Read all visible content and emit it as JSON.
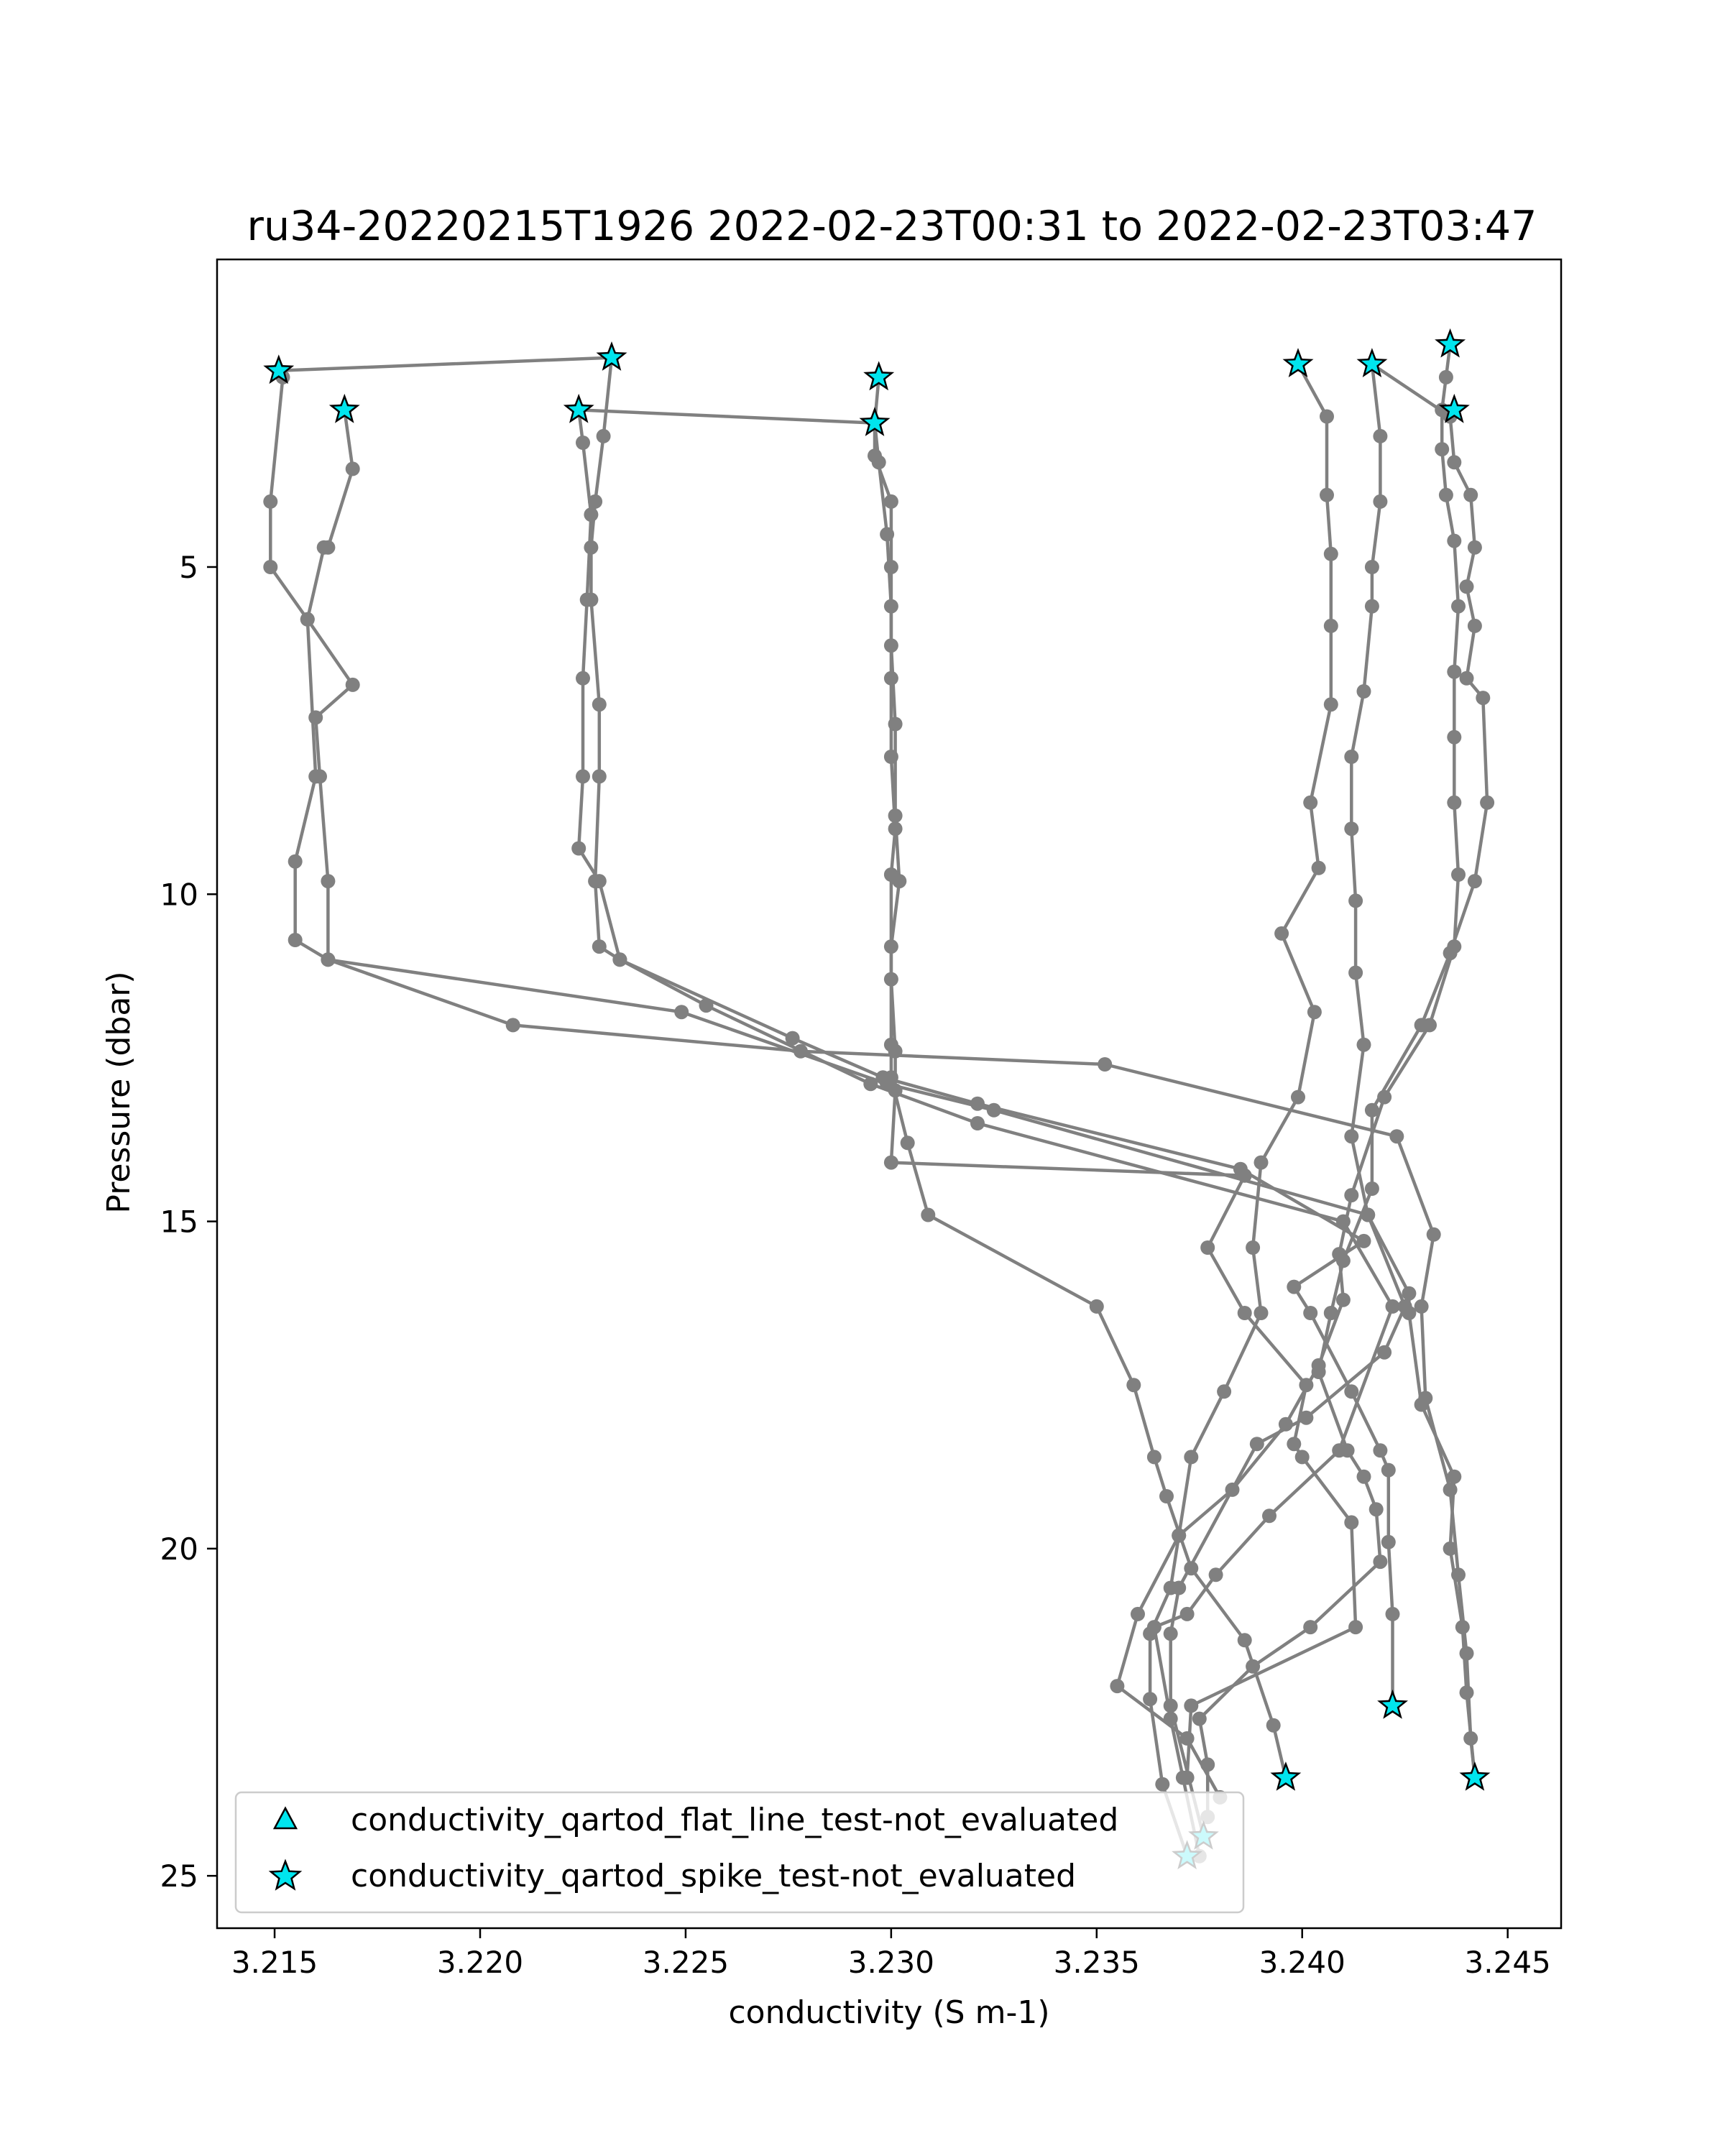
{
  "chart_data": {
    "type": "line",
    "title": "ru34-20220215T1926 2022-02-23T00:31 to 2022-02-23T03:47",
    "xlabel": "conductivity (S m-1)",
    "ylabel": "Pressure (dbar)",
    "xlim": [
      3.2136,
      3.2463
    ],
    "ylim": [
      25.8,
      0.3
    ],
    "y_inverted": true,
    "grid": false,
    "x_ticks": [
      3.215,
      3.22,
      3.225,
      3.23,
      3.235,
      3.24,
      3.245
    ],
    "x_tick_labels": [
      "3.215",
      "3.220",
      "3.225",
      "3.230",
      "3.235",
      "3.240",
      "3.245"
    ],
    "y_ticks": [
      5,
      10,
      15,
      20,
      25
    ],
    "y_tick_labels": [
      "5",
      "10",
      "15",
      "20",
      "25"
    ],
    "line_color": "#808080",
    "marker_color": "#00e5ee",
    "legend_position": "lower-left",
    "legend": [
      {
        "label": "conductivity_qartod_flat_line_test-not_evaluated",
        "marker": "triangle"
      },
      {
        "label": "conductivity_qartod_spike_test-not_evaluated",
        "marker": "star"
      }
    ],
    "series": [
      {
        "points": [
          [
            3.2167,
            2.6
          ],
          [
            3.2169,
            3.5
          ],
          [
            3.2163,
            4.7
          ],
          [
            3.2162,
            4.7
          ],
          [
            3.2158,
            5.8
          ],
          [
            3.2169,
            6.8
          ],
          [
            3.216,
            7.3
          ],
          [
            3.2161,
            8.2
          ],
          [
            3.2163,
            9.8
          ],
          [
            3.2163,
            11.0
          ],
          [
            3.2208,
            12.0
          ],
          [
            3.2278,
            12.4
          ],
          [
            3.2352,
            12.6
          ],
          [
            3.2423,
            13.7
          ],
          [
            3.2432,
            15.2
          ],
          [
            3.2429,
            16.3
          ],
          [
            3.243,
            17.7
          ],
          [
            3.2436,
            19.1
          ],
          [
            3.2438,
            20.4
          ],
          [
            3.244,
            21.6
          ],
          [
            3.2441,
            22.9
          ],
          [
            3.2442,
            23.5
          ]
        ]
      },
      {
        "points": [
          [
            3.2151,
            2.0
          ],
          [
            3.2152,
            2.1
          ],
          [
            3.2149,
            4.0
          ],
          [
            3.2149,
            5.0
          ],
          [
            3.2158,
            5.8
          ],
          [
            3.216,
            8.2
          ],
          [
            3.2155,
            9.5
          ],
          [
            3.2155,
            10.7
          ],
          [
            3.2163,
            11.0
          ],
          [
            3.2249,
            11.8
          ],
          [
            3.2299,
            12.9
          ],
          [
            3.2325,
            13.3
          ],
          [
            3.2416,
            14.9
          ],
          [
            3.2425,
            16.3
          ],
          [
            3.242,
            17.0
          ],
          [
            3.2401,
            18.0
          ],
          [
            3.2389,
            18.4
          ],
          [
            3.237,
            20.6
          ],
          [
            3.2368,
            21.3
          ],
          [
            3.2368,
            22.4
          ],
          [
            3.2376,
            24.4
          ]
        ]
      },
      {
        "points": [
          [
            3.2151,
            2.0
          ],
          [
            3.2232,
            1.8
          ],
          [
            3.223,
            3.0
          ],
          [
            3.2228,
            4.0
          ],
          [
            3.2227,
            4.7
          ],
          [
            3.2227,
            5.5
          ],
          [
            3.2229,
            7.1
          ],
          [
            3.2229,
            8.2
          ],
          [
            3.2228,
            9.8
          ],
          [
            3.2229,
            10.8
          ],
          [
            3.2234,
            11.0
          ],
          [
            3.2255,
            11.7
          ],
          [
            3.2295,
            12.9
          ],
          [
            3.2321,
            13.5
          ],
          [
            3.241,
            15.0
          ],
          [
            3.2422,
            16.3
          ],
          [
            3.2409,
            18.5
          ],
          [
            3.2392,
            19.5
          ],
          [
            3.2379,
            20.4
          ],
          [
            3.2372,
            21.0
          ],
          [
            3.2364,
            21.2
          ],
          [
            3.2368,
            22.6
          ],
          [
            3.2371,
            23.5
          ],
          [
            3.2375,
            24.7
          ]
        ]
      },
      {
        "points": [
          [
            3.2224,
            2.6
          ],
          [
            3.2225,
            3.1
          ],
          [
            3.2227,
            4.2
          ],
          [
            3.2226,
            5.5
          ],
          [
            3.2225,
            6.7
          ],
          [
            3.2225,
            8.2
          ],
          [
            3.2224,
            9.3
          ],
          [
            3.2229,
            9.8
          ],
          [
            3.2234,
            11.0
          ],
          [
            3.2276,
            12.2
          ],
          [
            3.2298,
            12.8
          ],
          [
            3.2321,
            13.2
          ],
          [
            3.2385,
            14.2
          ],
          [
            3.2415,
            15.3
          ],
          [
            3.2398,
            16.0
          ],
          [
            3.2402,
            16.4
          ],
          [
            3.2412,
            17.6
          ],
          [
            3.2419,
            18.5
          ],
          [
            3.2421,
            18.8
          ],
          [
            3.2421,
            19.9
          ],
          [
            3.2422,
            21.0
          ],
          [
            3.2422,
            22.4
          ]
        ]
      },
      {
        "points": [
          [
            3.2224,
            2.6
          ],
          [
            3.2296,
            2.8
          ],
          [
            3.2297,
            3.4
          ],
          [
            3.2299,
            4.5
          ],
          [
            3.23,
            5.6
          ],
          [
            3.23,
            6.7
          ],
          [
            3.23,
            7.9
          ],
          [
            3.2301,
            9.0
          ],
          [
            3.23,
            9.7
          ],
          [
            3.23,
            11.3
          ],
          [
            3.2301,
            12.4
          ],
          [
            3.2301,
            13.0
          ],
          [
            3.23,
            14.1
          ],
          [
            3.2386,
            14.3
          ],
          [
            3.2377,
            15.4
          ],
          [
            3.2386,
            16.4
          ],
          [
            3.2401,
            17.5
          ],
          [
            3.2398,
            18.4
          ],
          [
            3.24,
            18.6
          ],
          [
            3.2412,
            19.6
          ],
          [
            3.2413,
            21.2
          ],
          [
            3.2373,
            22.4
          ],
          [
            3.2372,
            23.5
          ]
        ]
      },
      {
        "points": [
          [
            3.2297,
            2.1
          ],
          [
            3.2296,
            2.8
          ],
          [
            3.2296,
            3.3
          ],
          [
            3.23,
            4.0
          ],
          [
            3.23,
            5.0
          ],
          [
            3.23,
            6.2
          ],
          [
            3.2301,
            7.4
          ],
          [
            3.2301,
            8.8
          ],
          [
            3.2302,
            9.8
          ],
          [
            3.23,
            10.8
          ],
          [
            3.23,
            12.3
          ],
          [
            3.23,
            12.8
          ],
          [
            3.2304,
            13.8
          ],
          [
            3.2309,
            14.9
          ],
          [
            3.235,
            16.3
          ],
          [
            3.2359,
            17.5
          ],
          [
            3.2364,
            18.6
          ],
          [
            3.2367,
            19.2
          ],
          [
            3.2373,
            20.3
          ],
          [
            3.2386,
            21.4
          ],
          [
            3.2393,
            22.7
          ],
          [
            3.2396,
            23.5
          ]
        ]
      },
      {
        "points": [
          [
            3.2399,
            1.9
          ],
          [
            3.2406,
            2.7
          ],
          [
            3.2406,
            3.9
          ],
          [
            3.2407,
            4.8
          ],
          [
            3.2407,
            5.9
          ],
          [
            3.2407,
            7.1
          ],
          [
            3.2402,
            8.6
          ],
          [
            3.2404,
            9.6
          ],
          [
            3.2395,
            10.6
          ],
          [
            3.2403,
            11.8
          ],
          [
            3.2399,
            13.1
          ],
          [
            3.239,
            14.1
          ],
          [
            3.2388,
            15.4
          ],
          [
            3.239,
            16.4
          ],
          [
            3.2381,
            17.6
          ],
          [
            3.2373,
            18.6
          ],
          [
            3.237,
            19.8
          ],
          [
            3.236,
            21.0
          ],
          [
            3.2355,
            22.1
          ],
          [
            3.2372,
            22.9
          ],
          [
            3.238,
            23.8
          ]
        ]
      },
      {
        "points": [
          [
            3.2417,
            1.9
          ],
          [
            3.2419,
            3.0
          ],
          [
            3.2419,
            4.0
          ],
          [
            3.2417,
            5.0
          ],
          [
            3.2417,
            5.6
          ],
          [
            3.2415,
            6.9
          ],
          [
            3.2412,
            7.9
          ],
          [
            3.2412,
            9.0
          ],
          [
            3.2413,
            10.1
          ],
          [
            3.2413,
            11.2
          ],
          [
            3.2415,
            12.3
          ],
          [
            3.2412,
            13.7
          ],
          [
            3.2416,
            14.9
          ],
          [
            3.2426,
            16.1
          ],
          [
            3.2426,
            16.4
          ],
          [
            3.2429,
            17.8
          ],
          [
            3.2437,
            18.9
          ],
          [
            3.2436,
            20.0
          ],
          [
            3.2439,
            21.2
          ],
          [
            3.244,
            22.2
          ],
          [
            3.2442,
            23.5
          ]
        ]
      },
      {
        "points": [
          [
            3.2417,
            1.9
          ],
          [
            3.2436,
            2.7
          ],
          [
            3.2437,
            3.4
          ],
          [
            3.2441,
            3.9
          ],
          [
            3.2442,
            4.7
          ],
          [
            3.244,
            5.3
          ],
          [
            3.2442,
            5.9
          ],
          [
            3.244,
            6.7
          ],
          [
            3.2444,
            7.0
          ],
          [
            3.2445,
            8.6
          ],
          [
            3.2442,
            9.8
          ],
          [
            3.2436,
            10.9
          ],
          [
            3.2429,
            12.0
          ],
          [
            3.2417,
            13.3
          ],
          [
            3.2417,
            14.5
          ],
          [
            3.241,
            15.6
          ],
          [
            3.2407,
            16.4
          ],
          [
            3.2404,
            17.3
          ],
          [
            3.2411,
            18.5
          ],
          [
            3.2415,
            18.9
          ],
          [
            3.2418,
            19.4
          ],
          [
            3.2419,
            20.2
          ],
          [
            3.2402,
            21.2
          ],
          [
            3.2388,
            21.8
          ],
          [
            3.2375,
            22.6
          ],
          [
            3.2377,
            23.3
          ],
          [
            3.2377,
            24.1
          ]
        ]
      },
      {
        "points": [
          [
            3.2436,
            1.6
          ],
          [
            3.2435,
            2.1
          ],
          [
            3.2434,
            2.6
          ],
          [
            3.2434,
            3.2
          ],
          [
            3.2435,
            3.9
          ],
          [
            3.2437,
            4.6
          ],
          [
            3.2438,
            5.6
          ],
          [
            3.2437,
            6.6
          ],
          [
            3.2437,
            7.6
          ],
          [
            3.2437,
            8.6
          ],
          [
            3.2438,
            9.7
          ],
          [
            3.2437,
            10.8
          ],
          [
            3.2431,
            12.0
          ],
          [
            3.242,
            13.1
          ],
          [
            3.2412,
            14.6
          ],
          [
            3.2409,
            15.5
          ],
          [
            3.241,
            16.2
          ],
          [
            3.2404,
            17.2
          ],
          [
            3.2396,
            18.1
          ],
          [
            3.2383,
            19.1
          ],
          [
            3.237,
            19.8
          ],
          [
            3.2368,
            20.6
          ],
          [
            3.2363,
            21.3
          ],
          [
            3.2363,
            22.3
          ],
          [
            3.2366,
            23.6
          ],
          [
            3.2372,
            24.7
          ]
        ]
      }
    ],
    "star_markers": [
      [
        3.2151,
        2.0
      ],
      [
        3.2167,
        2.6
      ],
      [
        3.2224,
        2.6
      ],
      [
        3.2232,
        1.8
      ],
      [
        3.2296,
        2.8
      ],
      [
        3.2297,
        2.1
      ],
      [
        3.2399,
        1.9
      ],
      [
        3.2417,
        1.9
      ],
      [
        3.2436,
        1.6
      ],
      [
        3.2437,
        2.6
      ],
      [
        3.2422,
        22.4
      ],
      [
        3.2396,
        23.5
      ],
      [
        3.2442,
        23.5
      ],
      [
        3.2376,
        24.4
      ],
      [
        3.2372,
        24.7
      ]
    ]
  }
}
